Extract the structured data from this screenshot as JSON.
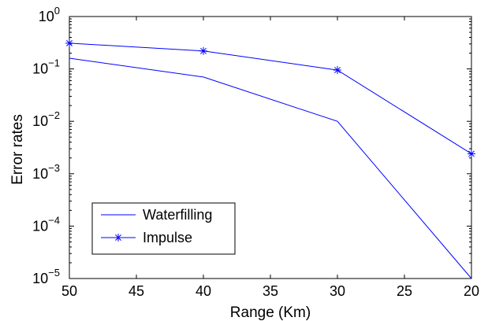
{
  "chart_data": {
    "type": "line",
    "title": "",
    "xlabel": "Range (Km)",
    "ylabel": "Error rates",
    "x_reversed": true,
    "xlim": [
      50,
      20
    ],
    "ylim": [
      1e-05,
      1
    ],
    "y_scale": "log",
    "grid": false,
    "legend_position": "bottom-left",
    "x_ticks": [
      "50",
      "45",
      "40",
      "35",
      "30",
      "25",
      "20"
    ],
    "y_ticks": [
      {
        "base": "10",
        "exp": "0"
      },
      {
        "base": "10",
        "exp": "−1"
      },
      {
        "base": "10",
        "exp": "−2"
      },
      {
        "base": "10",
        "exp": "−3"
      },
      {
        "base": "10",
        "exp": "−4"
      },
      {
        "base": "10",
        "exp": "−5"
      }
    ],
    "series": [
      {
        "name": "Waterfilling",
        "marker": "none",
        "color": "#0000ff",
        "x": [
          50,
          40,
          30,
          20
        ],
        "y": [
          0.16,
          0.07,
          0.01,
          1e-05
        ]
      },
      {
        "name": "Impulse",
        "marker": "asterisk",
        "color": "#0000ff",
        "x": [
          50,
          40,
          30,
          20
        ],
        "y": [
          0.31,
          0.22,
          0.095,
          0.0024
        ]
      }
    ]
  }
}
